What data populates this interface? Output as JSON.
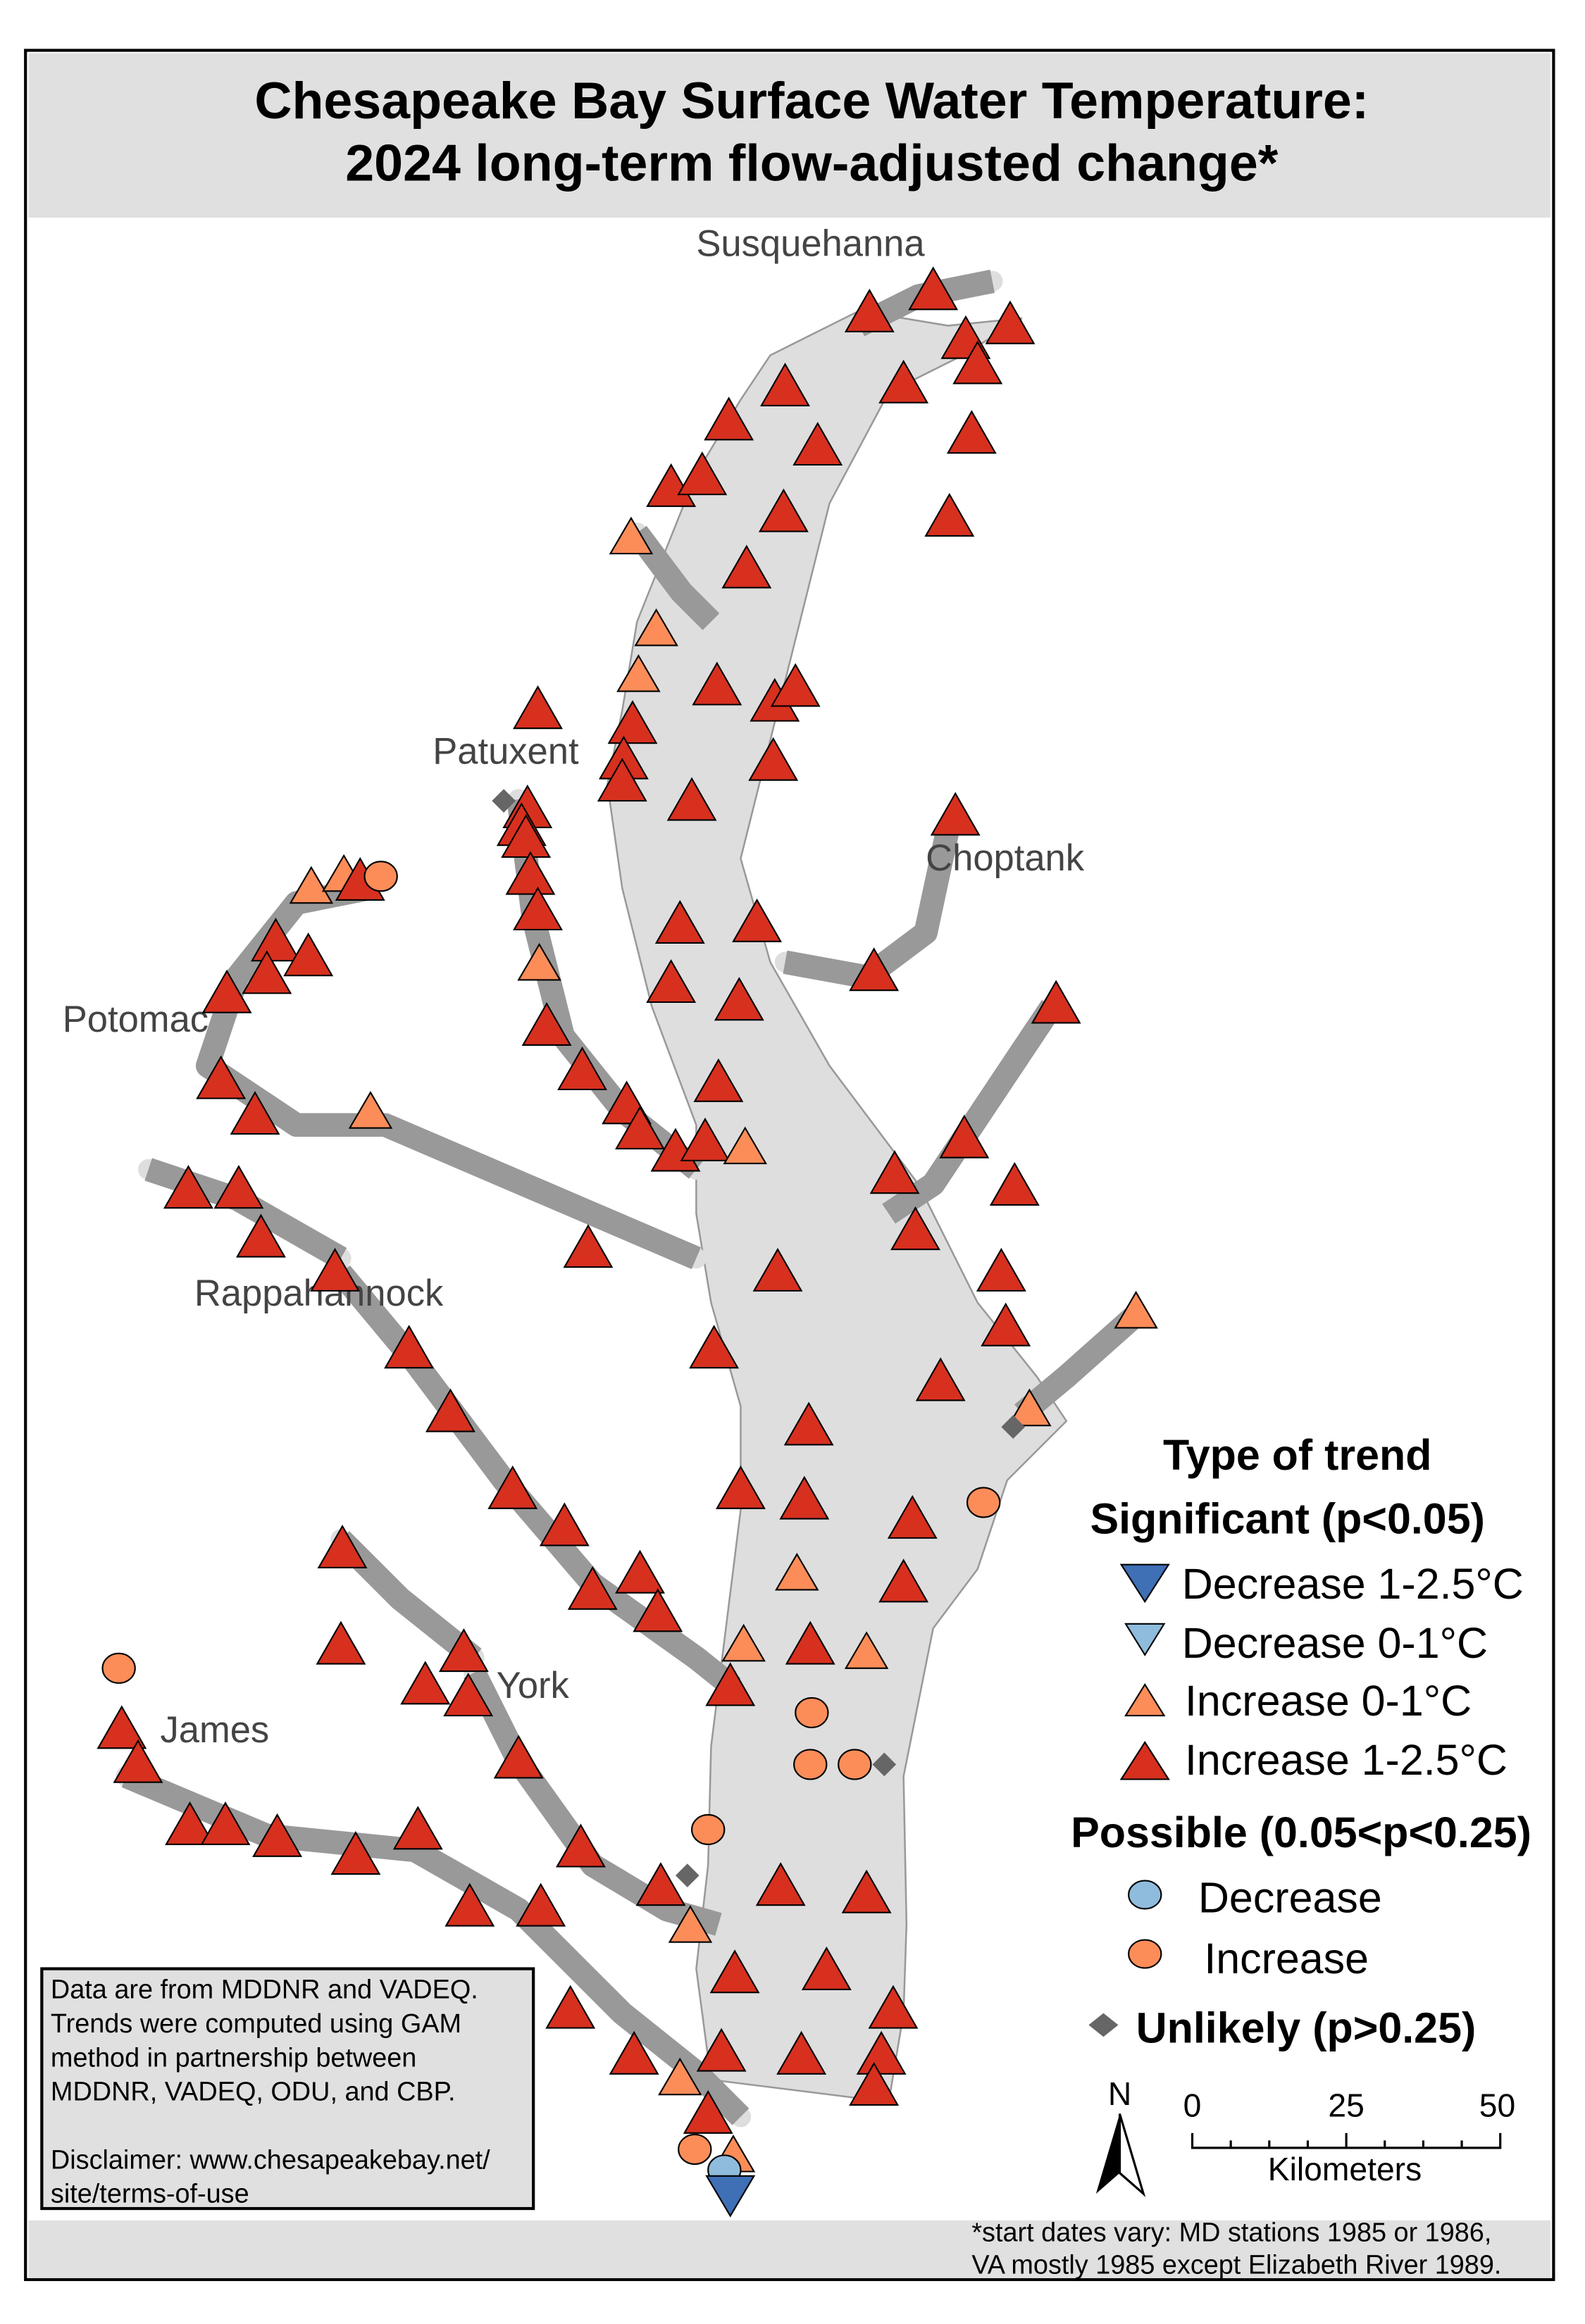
{
  "title": {
    "line1": "Chesapeake Bay Surface Water Temperature:",
    "line2": "2024 long-term flow-adjusted change*"
  },
  "rivers": {
    "susquehanna": "Susquehanna",
    "patuxent": "Patuxent",
    "choptank": "Choptank",
    "potomac": "Potomac",
    "rappahannock": "Rappahannock",
    "york": "York",
    "james": "James"
  },
  "legend": {
    "title": "Type of trend",
    "significant_header": "Significant (p<0.05)",
    "significant_items": [
      {
        "label": "Decrease 1-2.5°C",
        "color": "#3f6fb5"
      },
      {
        "label": "Decrease 0-1°C",
        "color": "#8fbcdc"
      },
      {
        "label": "Increase 0-1°C",
        "color": "#fc8d59"
      },
      {
        "label": "Increase 1-2.5°C",
        "color": "#d7301f"
      }
    ],
    "possible_header": "Possible (0.05<p<0.25)",
    "possible_items": [
      {
        "label": "Decrease",
        "color": "#8fbcdc"
      },
      {
        "label": "Increase",
        "color": "#fc8d59"
      }
    ],
    "unlikely_label": "Unlikely (p>0.25)",
    "unlikely_color": "#666666"
  },
  "scale_bar": {
    "north": "N",
    "ticks": [
      "0",
      "25",
      "50"
    ],
    "unit": "Kilometers"
  },
  "note": {
    "lines": [
      "Data are from MDDNR and VADEQ.",
      "Trends were computed using GAM",
      "method in partnership between",
      "MDDNR, VADEQ, ODU, and CBP.",
      "",
      "Disclaimer: www.chesapeakebay.net/",
      "site/terms-of-use"
    ]
  },
  "footnote": {
    "line1": "*start dates vary: MD stations 1985 or 1986,",
    "line2": "VA mostly 1985 except Elizabeth River 1989."
  }
}
